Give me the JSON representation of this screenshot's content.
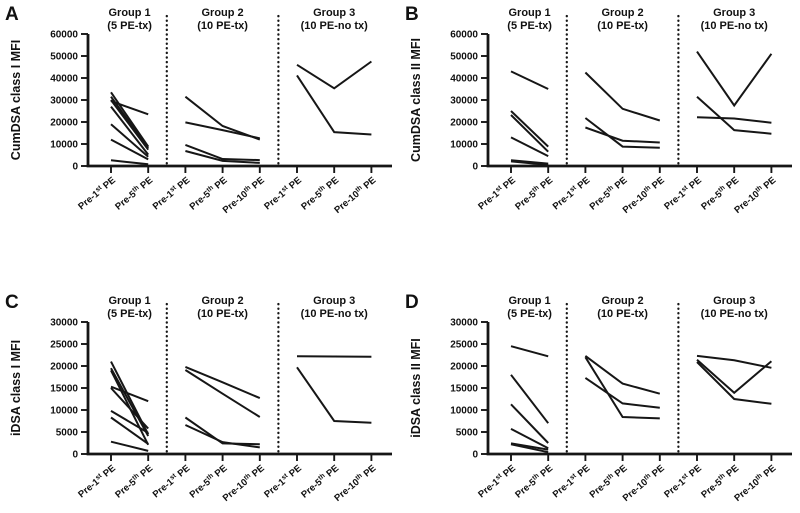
{
  "figure": {
    "background_color": "#ffffff",
    "line_color": "#161616",
    "text_color": "#111111"
  },
  "chart_data": [
    {
      "type": "line",
      "panel_label": "A",
      "ylabel": "CumDSA class I MFI",
      "ylim": [
        0,
        60000
      ],
      "ytick_step": 10000,
      "grid": false,
      "legend": "none",
      "groups": [
        {
          "label": "Group 1",
          "sublabel": "(5 PE-tx)",
          "x": [
            "Pre-1|st| PE",
            "Pre-5|th| PE"
          ],
          "series": [
            [
              33500,
              8800
            ],
            [
              31500,
              8200
            ],
            [
              30000,
              7400
            ],
            [
              29500,
              23500
            ],
            [
              27000,
              5200
            ],
            [
              19000,
              4200
            ],
            [
              12000,
              3000
            ],
            [
              2600,
              800
            ]
          ]
        },
        {
          "label": "Group 2",
          "sublabel": "(10 PE-tx)",
          "x": [
            "Pre-1|st| PE",
            "Pre-5|th| PE",
            "Pre-10|th| PE"
          ],
          "series": [
            [
              31500,
              18200,
              12000
            ],
            [
              19800,
              16300,
              12600
            ],
            [
              9600,
              3200,
              2700
            ],
            [
              6800,
              2300,
              1400
            ]
          ]
        },
        {
          "label": "Group 3",
          "sublabel": "(10 PE-no tx)",
          "x": [
            "Pre-1|st| PE",
            "Pre-5|th| PE",
            "Pre-10|th| PE"
          ],
          "series": [
            [
              46000,
              35300,
              47500
            ],
            [
              41200,
              15400,
              14300
            ]
          ]
        }
      ]
    },
    {
      "type": "line",
      "panel_label": "B",
      "ylabel": "CumDSA class II MFI",
      "ylim": [
        0,
        60000
      ],
      "ytick_step": 10000,
      "grid": false,
      "legend": "none",
      "groups": [
        {
          "label": "Group 1",
          "sublabel": "(5 PE-tx)",
          "x": [
            "Pre-1|st| PE",
            "Pre-5|th| PE"
          ],
          "series": [
            [
              43000,
              35000
            ],
            [
              25000,
              8800
            ],
            [
              23200,
              6500
            ],
            [
              13000,
              4500
            ],
            [
              2600,
              1100
            ],
            [
              2100,
              500
            ]
          ]
        },
        {
          "label": "Group 2",
          "sublabel": "(10 PE-tx)",
          "x": [
            "Pre-1|st| PE",
            "Pre-5|th| PE",
            "Pre-10|th| PE"
          ],
          "series": [
            [
              42500,
              26000,
              20700
            ],
            [
              21800,
              8800,
              8300
            ],
            [
              17500,
              11500,
              10700
            ]
          ]
        },
        {
          "label": "Group 3",
          "sublabel": "(10 PE-no tx)",
          "x": [
            "Pre-1|st| PE",
            "Pre-5|th| PE",
            "Pre-10|th| PE"
          ],
          "series": [
            [
              52000,
              27500,
              51000
            ],
            [
              31500,
              16300,
              14700
            ],
            [
              22200,
              21600,
              19700
            ]
          ]
        }
      ]
    },
    {
      "type": "line",
      "panel_label": "C",
      "ylabel": "iDSA class I MFI",
      "ylim": [
        0,
        30000
      ],
      "ytick_step": 5000,
      "grid": false,
      "legend": "none",
      "groups": [
        {
          "label": "Group 1",
          "sublabel": "(5 PE-tx)",
          "x": [
            "Pre-1|st| PE",
            "Pre-5|th| PE"
          ],
          "series": [
            [
              21000,
              4500
            ],
            [
              19500,
              4100
            ],
            [
              19000,
              2100
            ],
            [
              15300,
              12000
            ],
            [
              15000,
              5800
            ],
            [
              9800,
              4800
            ],
            [
              8300,
              2300
            ],
            [
              2800,
              700
            ]
          ]
        },
        {
          "label": "Group 2",
          "sublabel": "(10 PE-tx)",
          "x": [
            "Pre-1|st| PE",
            "Pre-5|th| PE",
            "Pre-10|th| PE"
          ],
          "series": [
            [
              19800,
              16300,
              12700
            ],
            [
              19100,
              13700,
              8400
            ],
            [
              8300,
              2400,
              2200
            ],
            [
              6600,
              2700,
              1500
            ]
          ]
        },
        {
          "label": "Group 3",
          "sublabel": "(10 PE-no tx)",
          "x": [
            "Pre-1|st| PE",
            "Pre-5|th| PE",
            "Pre-10|th| PE"
          ],
          "series": [
            [
              22200,
              22150,
              22100
            ],
            [
              19700,
              7500,
              7100
            ]
          ]
        }
      ]
    },
    {
      "type": "line",
      "panel_label": "D",
      "ylabel": "iDSA class II MFI",
      "ylim": [
        0,
        30000
      ],
      "ytick_step": 5000,
      "grid": false,
      "legend": "none",
      "groups": [
        {
          "label": "Group 1",
          "sublabel": "(5 PE-tx)",
          "x": [
            "Pre-1|st| PE",
            "Pre-5|th| PE"
          ],
          "series": [
            [
              24500,
              22200
            ],
            [
              18000,
              7000
            ],
            [
              11300,
              2500
            ],
            [
              5700,
              1300
            ],
            [
              2400,
              1000
            ],
            [
              2200,
              400
            ]
          ]
        },
        {
          "label": "Group 2",
          "sublabel": "(10 PE-tx)",
          "x": [
            "Pre-1|st| PE",
            "Pre-5|th| PE",
            "Pre-10|th| PE"
          ],
          "series": [
            [
              22300,
              16000,
              13700
            ],
            [
              22000,
              8400,
              8100
            ],
            [
              17300,
              11500,
              10500
            ]
          ]
        },
        {
          "label": "Group 3",
          "sublabel": "(10 PE-no tx)",
          "x": [
            "Pre-1|st| PE",
            "Pre-5|th| PE",
            "Pre-10|th| PE"
          ],
          "series": [
            [
              22300,
              21300,
              19600
            ],
            [
              21400,
              13900,
              21100
            ],
            [
              20900,
              12500,
              11400
            ]
          ]
        }
      ]
    }
  ]
}
